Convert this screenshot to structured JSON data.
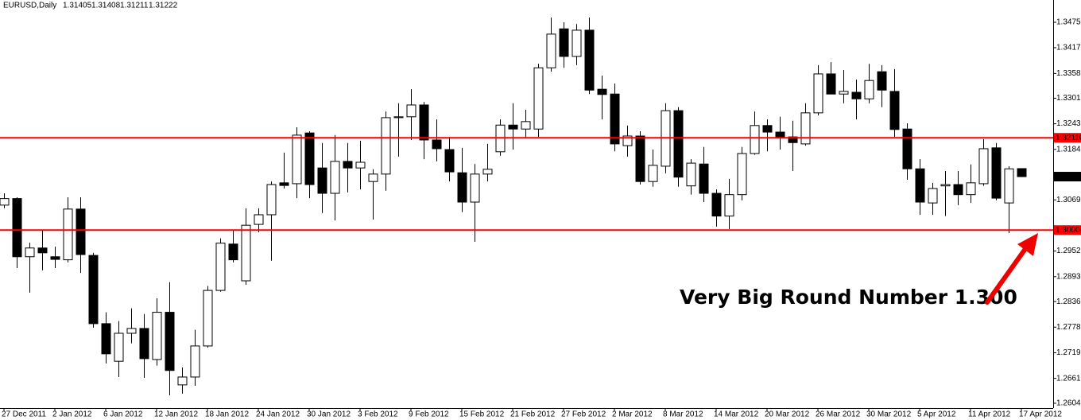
{
  "chart_data": {
    "type": "candlestick",
    "title": "EURUSD,Daily",
    "x": [
      "27 Dec 2011",
      null,
      null,
      null,
      "2 Jan 2012",
      null,
      null,
      null,
      "6 Jan 2012",
      null,
      null,
      null,
      "12 Jan 2012",
      null,
      null,
      null,
      "18 Jan 2012",
      null,
      null,
      null,
      "24 Jan 2012",
      null,
      null,
      null,
      "30 Jan 2012",
      null,
      null,
      null,
      "3 Feb 2012",
      null,
      null,
      null,
      "9 Feb 2012",
      null,
      null,
      null,
      "15 Feb 2012",
      null,
      null,
      null,
      "21 Feb 2012",
      null,
      null,
      null,
      "27 Feb 2012",
      null,
      null,
      null,
      "2 Mar 2012",
      null,
      null,
      null,
      "8 Mar 2012",
      null,
      null,
      null,
      "14 Mar 2012",
      null,
      null,
      null,
      "20 Mar 2012",
      null,
      null,
      null,
      "26 Mar 2012",
      null,
      null,
      null,
      "30 Mar 2012",
      null,
      null,
      null,
      "5 Apr 2012",
      null,
      null,
      null,
      "11 Apr 2012",
      null,
      null,
      null,
      "17 Apr 2012"
    ],
    "ohlc": [
      [
        1.3057,
        1.3084,
        1.305,
        1.3072
      ],
      [
        1.3072,
        1.3075,
        1.2913,
        1.2939
      ],
      [
        1.2939,
        1.2971,
        1.2857,
        1.2959
      ],
      [
        1.2959,
        1.2999,
        1.2908,
        1.2948
      ],
      [
        1.2939,
        1.2962,
        1.2913,
        1.2933
      ],
      [
        1.2932,
        1.3075,
        1.2926,
        1.3048
      ],
      [
        1.3048,
        1.3075,
        1.2902,
        1.2944
      ],
      [
        1.2942,
        1.2948,
        1.2777,
        1.2786
      ],
      [
        1.2786,
        1.2812,
        1.2695,
        1.2717
      ],
      [
        1.27,
        1.2792,
        1.2664,
        1.2764
      ],
      [
        1.2764,
        1.2821,
        1.2741,
        1.2775
      ],
      [
        1.2775,
        1.2808,
        1.2662,
        1.2706
      ],
      [
        1.2704,
        1.2844,
        1.269,
        1.2812
      ],
      [
        1.2812,
        1.2881,
        1.2622,
        1.2679
      ],
      [
        1.2646,
        1.2686,
        1.2626,
        1.2664
      ],
      [
        1.2664,
        1.2772,
        1.2644,
        1.2735
      ],
      [
        1.2735,
        1.2872,
        1.2731,
        1.2862
      ],
      [
        1.2862,
        1.2981,
        1.2859,
        1.297
      ],
      [
        1.2968,
        1.2999,
        1.2926,
        1.2932
      ],
      [
        1.2884,
        1.305,
        1.2875,
        1.3011
      ],
      [
        1.3013,
        1.305,
        1.2995,
        1.3035
      ],
      [
        1.3035,
        1.3111,
        1.293,
        1.3104
      ],
      [
        1.3108,
        1.3177,
        1.3095,
        1.3102
      ],
      [
        1.3106,
        1.3235,
        1.3073,
        1.3217
      ],
      [
        1.3222,
        1.3226,
        1.3073,
        1.3104
      ],
      [
        1.3142,
        1.3199,
        1.3039,
        1.3084
      ],
      [
        1.3084,
        1.3217,
        1.3022,
        1.3157
      ],
      [
        1.3157,
        1.3199,
        1.3086,
        1.3142
      ],
      [
        1.3142,
        1.3204,
        1.3093,
        1.3155
      ],
      [
        1.3111,
        1.3139,
        1.3024,
        1.3128
      ],
      [
        1.3128,
        1.3271,
        1.309,
        1.3257
      ],
      [
        1.3257,
        1.329,
        1.3168,
        1.3259
      ],
      [
        1.3259,
        1.3322,
        1.3206,
        1.3286
      ],
      [
        1.3286,
        1.3293,
        1.3162,
        1.3206
      ],
      [
        1.3206,
        1.3253,
        1.3157,
        1.3186
      ],
      [
        1.3184,
        1.3213,
        1.3111,
        1.3133
      ],
      [
        1.3131,
        1.3188,
        1.3041,
        1.3064
      ],
      [
        1.3064,
        1.3151,
        1.2973,
        1.3128
      ],
      [
        1.3128,
        1.3197,
        1.3111,
        1.3139
      ],
      [
        1.3179,
        1.3253,
        1.317,
        1.324
      ],
      [
        1.324,
        1.329,
        1.3184,
        1.3231
      ],
      [
        1.3231,
        1.3275,
        1.321,
        1.3248
      ],
      [
        1.3231,
        1.338,
        1.3213,
        1.3371
      ],
      [
        1.3371,
        1.3486,
        1.3362,
        1.3448
      ],
      [
        1.346,
        1.3475,
        1.3371,
        1.3397
      ],
      [
        1.3397,
        1.3471,
        1.3377,
        1.3457
      ],
      [
        1.3457,
        1.3486,
        1.3311,
        1.332
      ],
      [
        1.3322,
        1.3353,
        1.3253,
        1.331
      ],
      [
        1.3311,
        1.3335,
        1.318,
        1.3197
      ],
      [
        1.3193,
        1.3239,
        1.3168,
        1.3215
      ],
      [
        1.3215,
        1.3226,
        1.3104,
        1.3111
      ],
      [
        1.3111,
        1.3184,
        1.3099,
        1.3148
      ],
      [
        1.3146,
        1.329,
        1.313,
        1.3273
      ],
      [
        1.3273,
        1.3281,
        1.3099,
        1.3121
      ],
      [
        1.3101,
        1.3162,
        1.3081,
        1.3153
      ],
      [
        1.3151,
        1.319,
        1.3064,
        1.3084
      ],
      [
        1.3084,
        1.3093,
        1.3008,
        1.3032
      ],
      [
        1.3032,
        1.3117,
        1.3002,
        1.3081
      ],
      [
        1.3081,
        1.319,
        1.3068,
        1.3175
      ],
      [
        1.3175,
        1.3271,
        1.3172,
        1.3239
      ],
      [
        1.3239,
        1.3253,
        1.318,
        1.3224
      ],
      [
        1.3224,
        1.3259,
        1.3184,
        1.3213
      ],
      [
        1.3213,
        1.325,
        1.3135,
        1.32
      ],
      [
        1.3197,
        1.329,
        1.3193,
        1.3268
      ],
      [
        1.3268,
        1.3377,
        1.3262,
        1.3357
      ],
      [
        1.3357,
        1.3384,
        1.3311,
        1.3311
      ],
      [
        1.3311,
        1.3366,
        1.329,
        1.3317
      ],
      [
        1.3315,
        1.3344,
        1.3253,
        1.33
      ],
      [
        1.33,
        1.338,
        1.329,
        1.3342
      ],
      [
        1.3362,
        1.3377,
        1.3281,
        1.332
      ],
      [
        1.3317,
        1.3368,
        1.3213,
        1.323
      ],
      [
        1.3231,
        1.3244,
        1.3115,
        1.314
      ],
      [
        1.314,
        1.3162,
        1.3035,
        1.3064
      ],
      [
        1.3062,
        1.3108,
        1.3035,
        1.3095
      ],
      [
        1.3101,
        1.3135,
        1.3032,
        1.3104
      ],
      [
        1.3104,
        1.3135,
        1.3057,
        1.3081
      ],
      [
        1.3081,
        1.315,
        1.3062,
        1.3108
      ],
      [
        1.3106,
        1.3208,
        1.3101,
        1.3186
      ],
      [
        1.3188,
        1.3199,
        1.3068,
        1.3073
      ],
      [
        1.3062,
        1.3146,
        1.2993,
        1.314
      ],
      [
        1.31405,
        1.31408,
        1.31211,
        1.31222
      ]
    ],
    "ylim": [
      1.2593,
      1.3526
    ],
    "yticks": [
      {
        "value": 1.3475,
        "label": "1.34750"
      },
      {
        "value": 1.3417,
        "label": "1.34170"
      },
      {
        "value": 1.3358,
        "label": "1.33580"
      },
      {
        "value": 1.33015,
        "label": "1.33015"
      },
      {
        "value": 1.3243,
        "label": "1.32430"
      },
      {
        "value": 1.31845,
        "label": "1.31845"
      },
      {
        "value": 1.3069,
        "label": "1.30690"
      },
      {
        "value": 1.2952,
        "label": "1.29520"
      },
      {
        "value": 1.28935,
        "label": "1.28935"
      },
      {
        "value": 1.28365,
        "label": "1.28365"
      },
      {
        "value": 1.2778,
        "label": "1.27780"
      },
      {
        "value": 1.27195,
        "label": "1.27195"
      },
      {
        "value": 1.2661,
        "label": "1.26610"
      },
      {
        "value": 1.2604,
        "label": "1.26040"
      }
    ],
    "hlines": [
      {
        "value": 1.3211,
        "label": "1.32110"
      },
      {
        "value": 1.3,
        "label": "1.30000"
      }
    ],
    "hline_color": "#ff0000",
    "up_color": "#ffffff",
    "down_color": "#000000",
    "annotation": "Very Big Round Number 1.300"
  }
}
